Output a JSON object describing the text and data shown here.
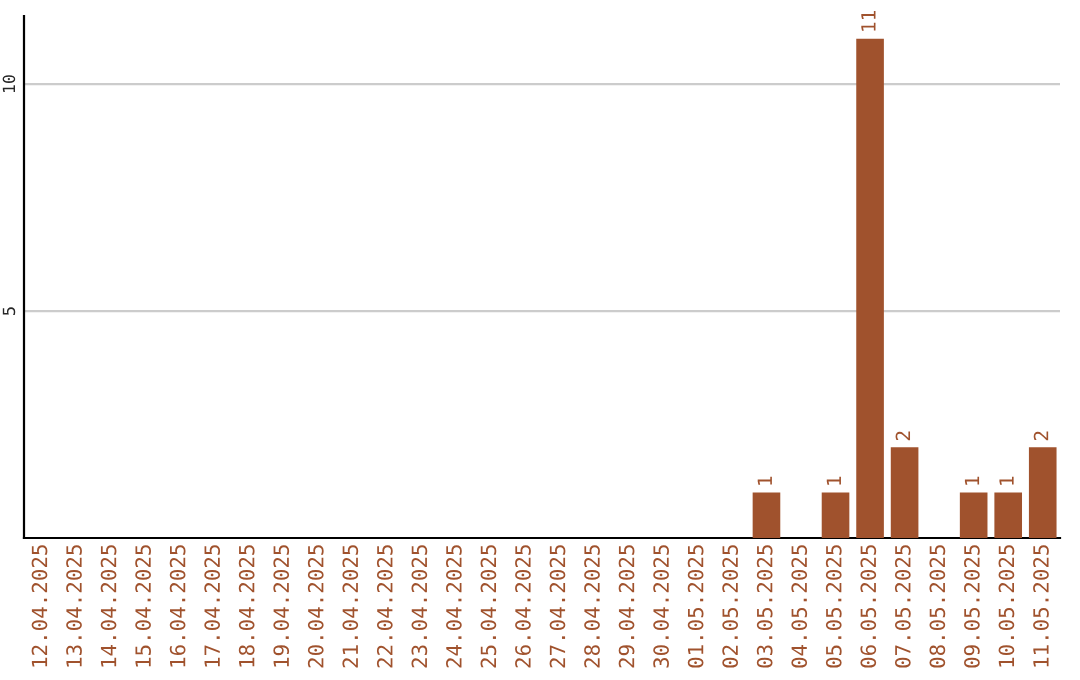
{
  "chart_data": {
    "type": "bar",
    "categories": [
      "12.04.2025",
      "13.04.2025",
      "14.04.2025",
      "15.04.2025",
      "16.04.2025",
      "17.04.2025",
      "18.04.2025",
      "19.04.2025",
      "20.04.2025",
      "21.04.2025",
      "22.04.2025",
      "23.04.2025",
      "24.04.2025",
      "25.04.2025",
      "26.04.2025",
      "27.04.2025",
      "28.04.2025",
      "29.04.2025",
      "30.04.2025",
      "01.05.2025",
      "02.05.2025",
      "03.05.2025",
      "04.05.2025",
      "05.05.2025",
      "06.05.2025",
      "07.05.2025",
      "08.05.2025",
      "09.05.2025",
      "10.05.2025",
      "11.05.2025"
    ],
    "values": [
      0,
      0,
      0,
      0,
      0,
      0,
      0,
      0,
      0,
      0,
      0,
      0,
      0,
      0,
      0,
      0,
      0,
      0,
      0,
      0,
      0,
      1,
      0,
      1,
      11,
      2,
      0,
      1,
      1,
      2
    ],
    "value_labels": [
      null,
      null,
      null,
      null,
      null,
      null,
      null,
      null,
      null,
      null,
      null,
      null,
      null,
      null,
      null,
      null,
      null,
      null,
      null,
      null,
      null,
      "1",
      null,
      "1",
      "11",
      "2",
      null,
      "1",
      "1",
      "2"
    ],
    "color": "#a0522d",
    "ylim": [
      0,
      11.5
    ],
    "yticks": [
      5,
      10
    ],
    "grid": "y"
  }
}
